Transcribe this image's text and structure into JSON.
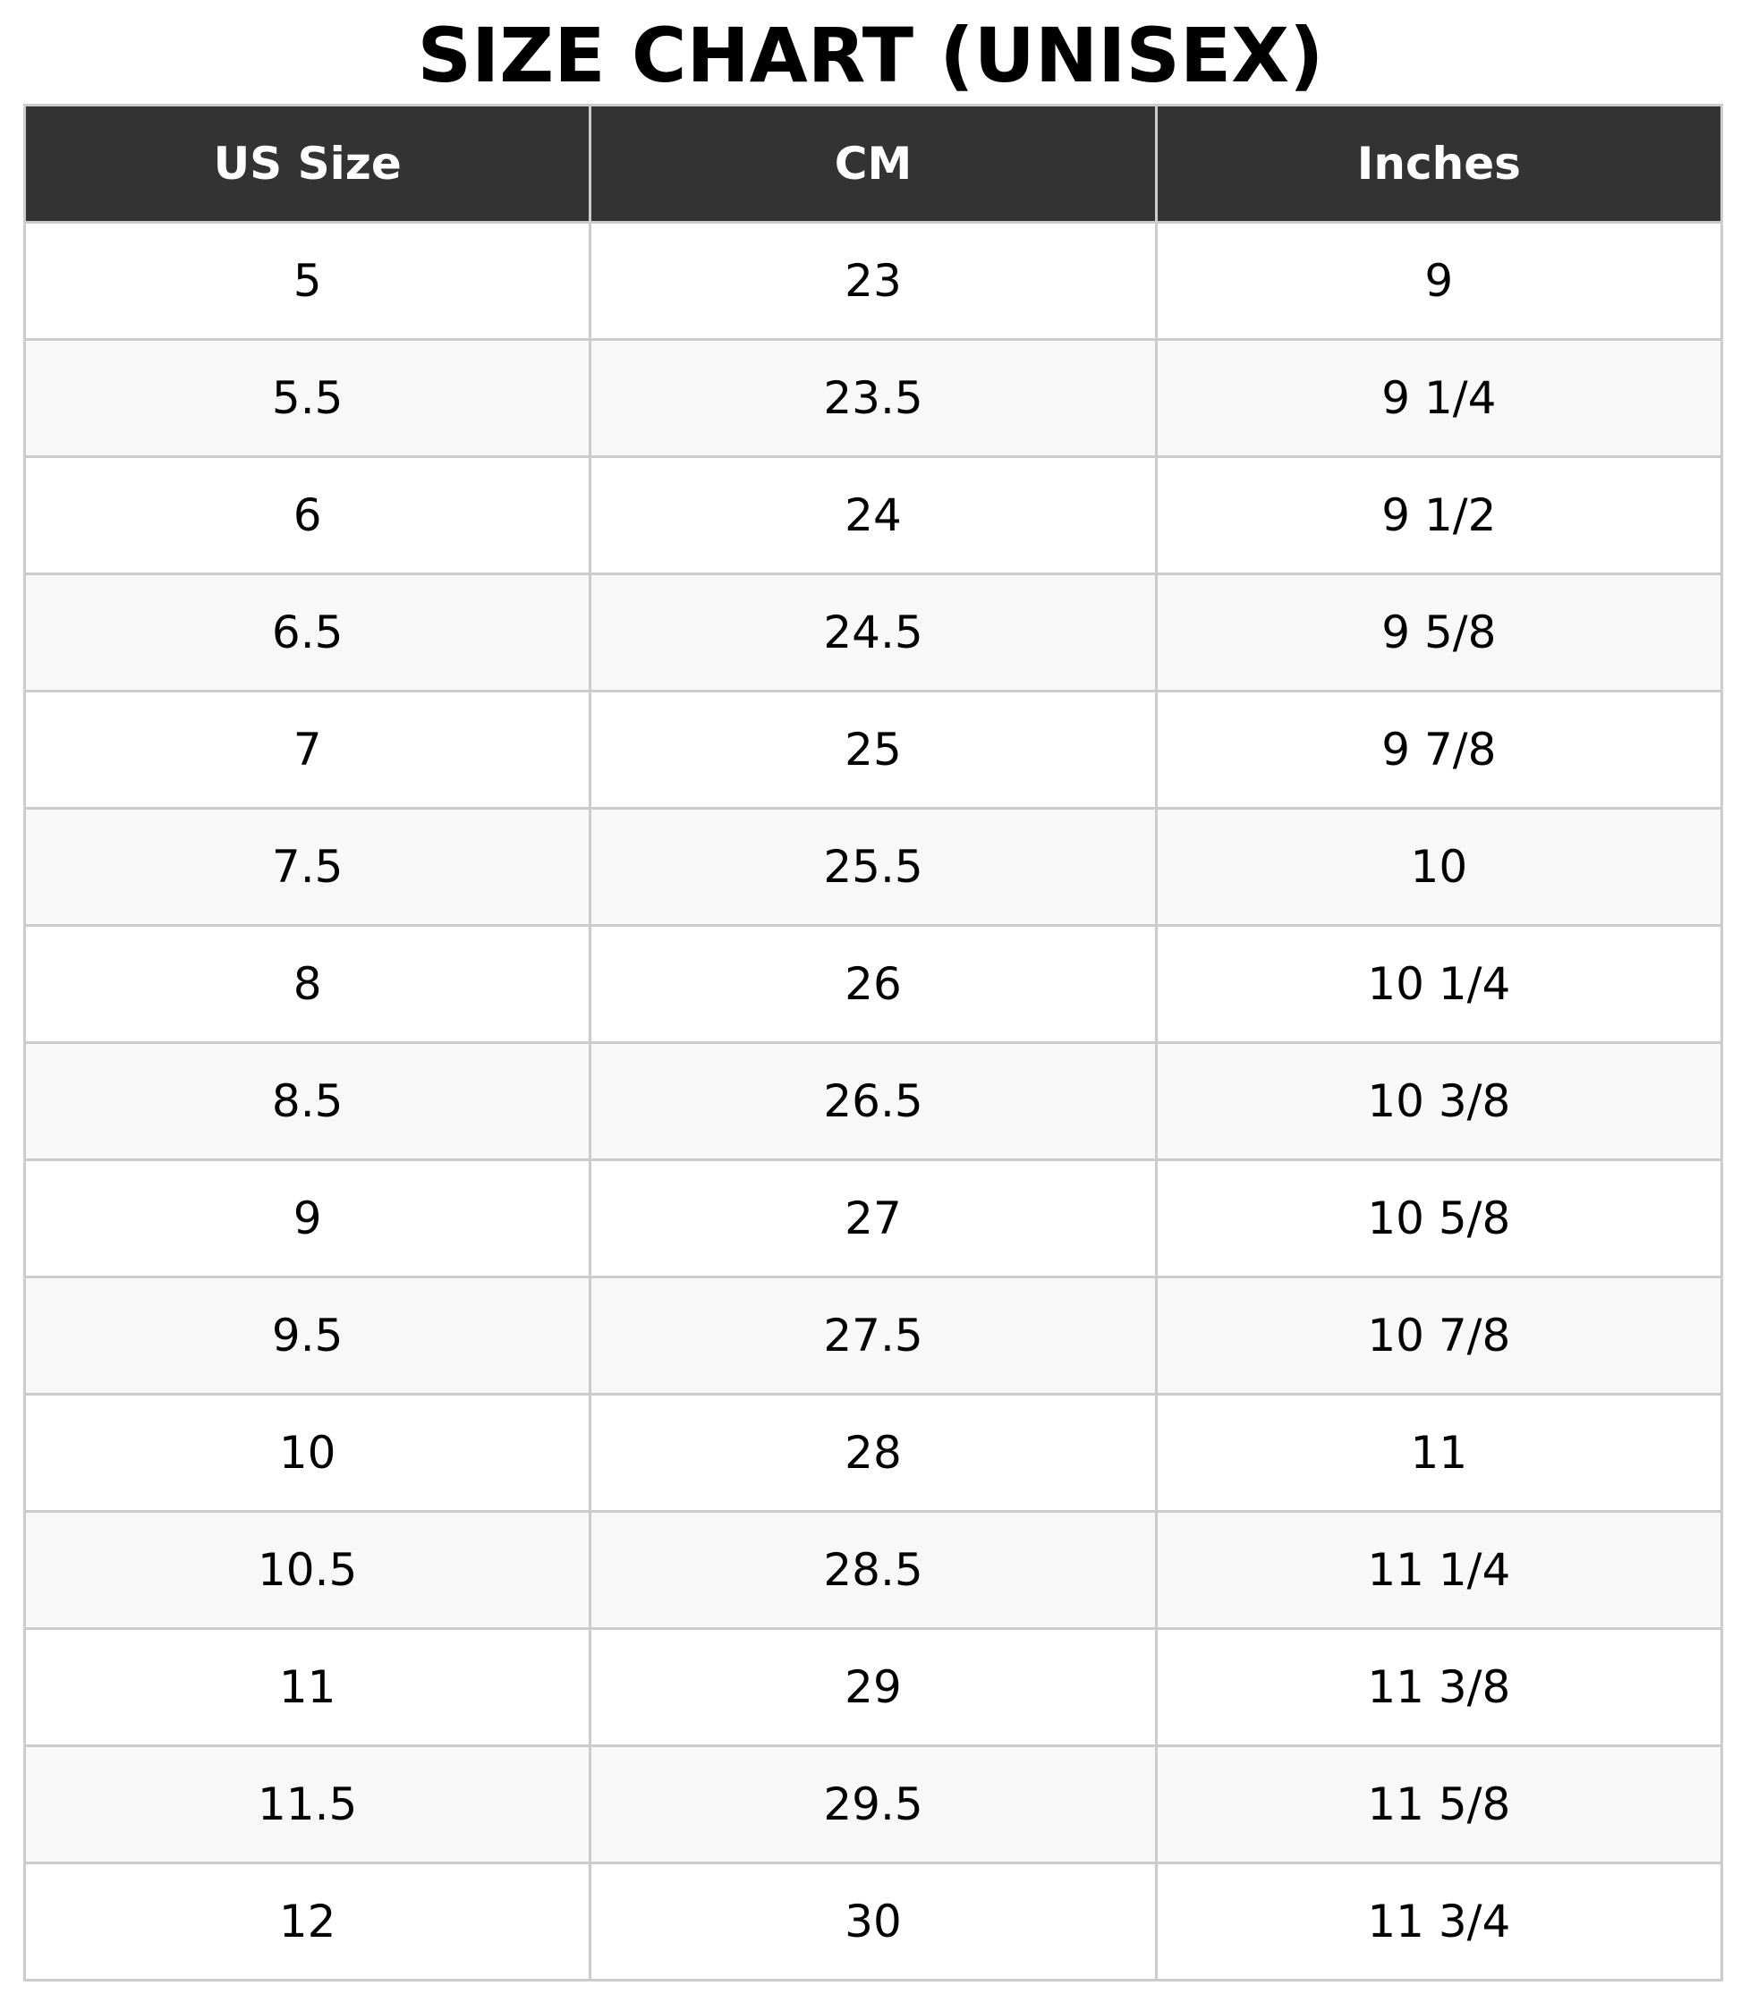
{
  "title": "SIZE CHART (UNISEX)",
  "colors": {
    "header_bg": "#333333",
    "header_text": "#ffffff",
    "border": "#cccccc",
    "alt_row": "#f8f8f8"
  },
  "columns": [
    "US Size",
    "CM",
    "Inches"
  ],
  "rows": [
    [
      "5",
      "23",
      "9"
    ],
    [
      "5.5",
      "23.5",
      "9 1/4"
    ],
    [
      "6",
      "24",
      "9 1/2"
    ],
    [
      "6.5",
      "24.5",
      "9 5/8"
    ],
    [
      "7",
      "25",
      "9 7/8"
    ],
    [
      "7.5",
      "25.5",
      "10"
    ],
    [
      "8",
      "26",
      "10 1/4"
    ],
    [
      "8.5",
      "26.5",
      "10 3/8"
    ],
    [
      "9",
      "27",
      "10 5/8"
    ],
    [
      "9.5",
      "27.5",
      "10 7/8"
    ],
    [
      "10",
      "28",
      "11"
    ],
    [
      "10.5",
      "28.5",
      "11 1/4"
    ],
    [
      "11",
      "29",
      "11 3/8"
    ],
    [
      "11.5",
      "29.5",
      "11 5/8"
    ],
    [
      "12",
      "30",
      "11 3/4"
    ]
  ]
}
